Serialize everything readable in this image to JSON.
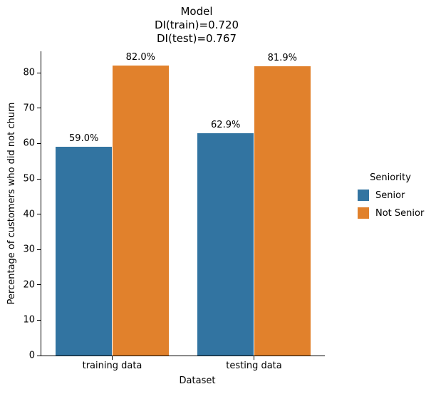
{
  "figure": {
    "title_lines": [
      "Model",
      "DI(train)=0.720",
      "DI(test)=0.767"
    ],
    "xlabel": "Dataset",
    "ylabel": "Percentage of customers who did not churn"
  },
  "legend": {
    "title": "Seniority",
    "entries": [
      {
        "label": "Senior",
        "color": "#3274a1"
      },
      {
        "label": "Not Senior",
        "color": "#e1812c"
      }
    ]
  },
  "chart_data": {
    "type": "bar",
    "title": "Model\nDI(train)=0.720\nDI(test)=0.767",
    "xlabel": "Dataset",
    "ylabel": "Percentage of customers who did not churn",
    "categories": [
      "training data",
      "testing data"
    ],
    "series": [
      {
        "name": "Senior",
        "color": "#3274a1",
        "values": [
          59.0,
          62.9
        ],
        "labels": [
          "59.0%",
          "62.9%"
        ]
      },
      {
        "name": "Not Senior",
        "color": "#e1812c",
        "values": [
          82.0,
          81.9
        ],
        "labels": [
          "82.0%",
          "81.9%"
        ]
      }
    ],
    "ylim": [
      0,
      86.1
    ],
    "yticks": [
      0,
      10,
      20,
      30,
      40,
      50,
      60,
      70,
      80
    ],
    "grid": false,
    "legend_title": "Seniority",
    "legend_position": "center right",
    "group_width_fraction": 0.8
  }
}
